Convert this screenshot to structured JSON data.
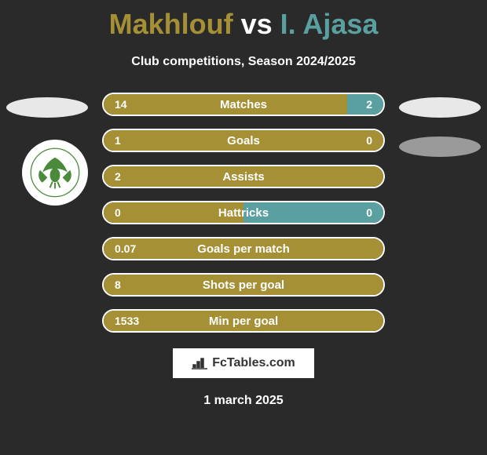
{
  "title": {
    "player1": "Makhlouf",
    "vs": "vs",
    "player2": "I. Ajasa",
    "player1_color": "#a69035",
    "vs_color": "#ffffff",
    "player2_color": "#5aa0a0"
  },
  "subtitle": "Club competitions, Season 2024/2025",
  "bars": {
    "color_left": "#a69035",
    "color_right": "#5aa0a0",
    "border_color": "#ffffff",
    "rows": [
      {
        "label": "Matches",
        "left_val": "14",
        "right_val": "2",
        "left_pct": 87,
        "right_pct": 13
      },
      {
        "label": "Goals",
        "left_val": "1",
        "right_val": "0",
        "left_pct": 100,
        "right_pct": 0
      },
      {
        "label": "Assists",
        "left_val": "2",
        "right_val": "",
        "left_pct": 100,
        "right_pct": 0
      },
      {
        "label": "Hattricks",
        "left_val": "0",
        "right_val": "0",
        "left_pct": 50,
        "right_pct": 50
      },
      {
        "label": "Goals per match",
        "left_val": "0.07",
        "right_val": "",
        "left_pct": 100,
        "right_pct": 0
      },
      {
        "label": "Shots per goal",
        "left_val": "8",
        "right_val": "",
        "left_pct": 100,
        "right_pct": 0
      },
      {
        "label": "Min per goal",
        "left_val": "1533",
        "right_val": "",
        "left_pct": 100,
        "right_pct": 0
      }
    ]
  },
  "footer": {
    "brand": "FcTables.com",
    "date": "1 march 2025"
  },
  "logo": {
    "eagle_color": "#4a8a3a"
  }
}
